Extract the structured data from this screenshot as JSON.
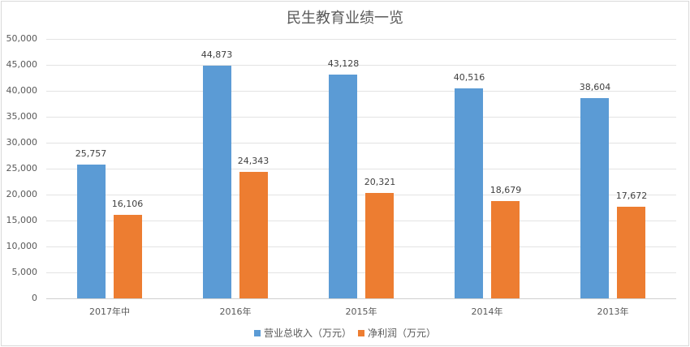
{
  "chart_data": {
    "type": "bar",
    "title": "民生教育业绩一览",
    "categories": [
      "2017年中",
      "2016年",
      "2015年",
      "2014年",
      "2013年"
    ],
    "series": [
      {
        "name": "营业总收入（万元）",
        "color": "#5b9bd5",
        "values": [
          25757,
          44873,
          43128,
          40516,
          38604
        ],
        "labels": [
          "25,757",
          "44,873",
          "43,128",
          "40,516",
          "38,604"
        ]
      },
      {
        "name": "净利润（万元）",
        "color": "#ed7d31",
        "values": [
          16106,
          24343,
          20321,
          18679,
          17672
        ],
        "labels": [
          "16,106",
          "24,343",
          "20,321",
          "18,679",
          "17,672"
        ]
      }
    ],
    "xlabel": "",
    "ylabel": "",
    "ylim": [
      0,
      50000
    ],
    "yticks": [
      "0",
      "5,000",
      "10,000",
      "15,000",
      "20,000",
      "25,000",
      "30,000",
      "35,000",
      "40,000",
      "45,000",
      "50,000"
    ],
    "grid": true,
    "legend_position": "bottom"
  }
}
